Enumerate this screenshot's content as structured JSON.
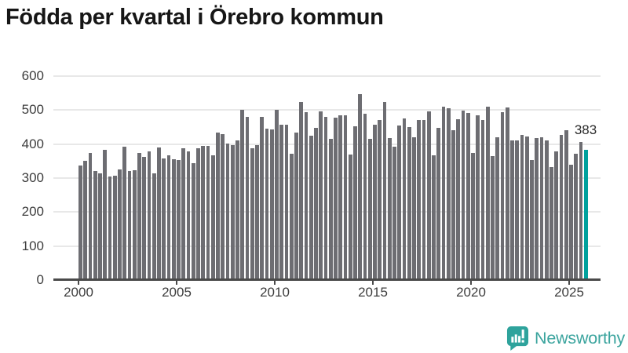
{
  "title": "Födda per kvartal i Örebro kommun",
  "chart_data": {
    "type": "bar",
    "title": "Födda per kvartal i Örebro kommun",
    "series_description": "births-per-quarter",
    "start_period": "2000 Q1",
    "end_period": "2025 Q4",
    "values": [
      337,
      351,
      375,
      320,
      315,
      383,
      305,
      308,
      325,
      393,
      320,
      322,
      374,
      362,
      378,
      314,
      389,
      358,
      366,
      355,
      354,
      387,
      378,
      345,
      388,
      394,
      394,
      366,
      434,
      430,
      401,
      398,
      410,
      500,
      479,
      387,
      398,
      480,
      445,
      444,
      500,
      458,
      458,
      371,
      434,
      525,
      493,
      424,
      448,
      497,
      481,
      416,
      478,
      485,
      485,
      370,
      453,
      548,
      489,
      415,
      456,
      470,
      525,
      418,
      393,
      455,
      475,
      451,
      420,
      470,
      471,
      497,
      368,
      448,
      510,
      506,
      441,
      474,
      499,
      491,
      374,
      484,
      470,
      510,
      364,
      420,
      494,
      507,
      410,
      410,
      428,
      422,
      354,
      418,
      420,
      410,
      333,
      379,
      428,
      441,
      339,
      372,
      407,
      383
    ],
    "x_tick_labels": [
      "2000",
      "2005",
      "2010",
      "2015",
      "2020",
      "2025"
    ],
    "y_tick_labels": [
      "0",
      "100",
      "200",
      "300",
      "400",
      "500",
      "600"
    ],
    "ylim": [
      0,
      600
    ],
    "grid": true,
    "legend": false,
    "bar_color": "#6d6d72",
    "highlight": {
      "position": "last",
      "value": 383,
      "label": "383",
      "color": "#00a19d"
    }
  },
  "footer": {
    "brand": "Newsworthy",
    "brand_color": "#3ba49e",
    "icon": "bar-chart-speech-bubble-icon",
    "icon_color": "#2ea39c"
  }
}
